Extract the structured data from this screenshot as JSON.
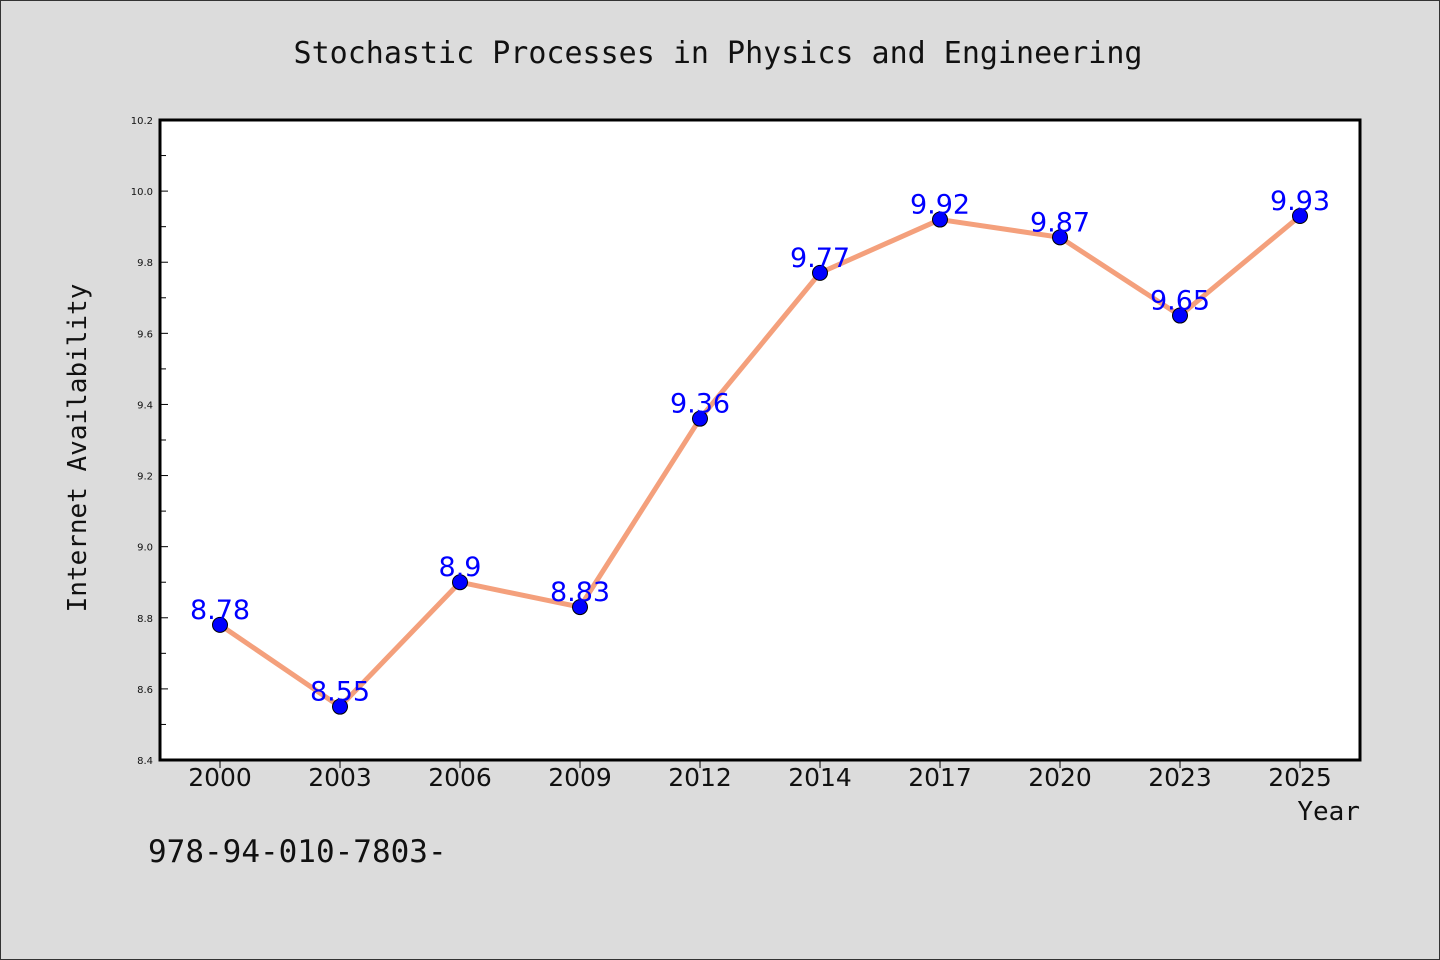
{
  "chart_data": {
    "type": "line",
    "title": "Stochastic Processes in Physics and Engineering",
    "xlabel": "Year",
    "ylabel": "Internet Availability",
    "categories": [
      "2000",
      "2003",
      "2006",
      "2009",
      "2012",
      "2014",
      "2017",
      "2020",
      "2023",
      "2025"
    ],
    "series": [
      {
        "values": [
          8.78,
          8.55,
          8.9,
          8.83,
          9.36,
          9.77,
          9.92,
          9.87,
          9.65,
          9.93
        ]
      }
    ],
    "data_labels": [
      "8.78",
      "8.55",
      "8.9",
      "8.83",
      "9.36",
      "9.77",
      "9.92",
      "9.87",
      "9.65",
      "9.93"
    ],
    "ylim": [
      8.4,
      10.2
    ],
    "yticks": [
      "8.4",
      "8.6",
      "8.8",
      "9.0",
      "9.2",
      "9.4",
      "9.6",
      "9.8",
      "10.0",
      "10.2"
    ],
    "grid": false,
    "legend": "none",
    "colors": {
      "line": "#f4a07c",
      "marker": "#0000ff",
      "marker_edge": "#000000",
      "data_label": "#0000ff",
      "background": "#dcdcdc",
      "plot_area": "#ffffff"
    }
  },
  "footnote": "978-94-010-7803-"
}
